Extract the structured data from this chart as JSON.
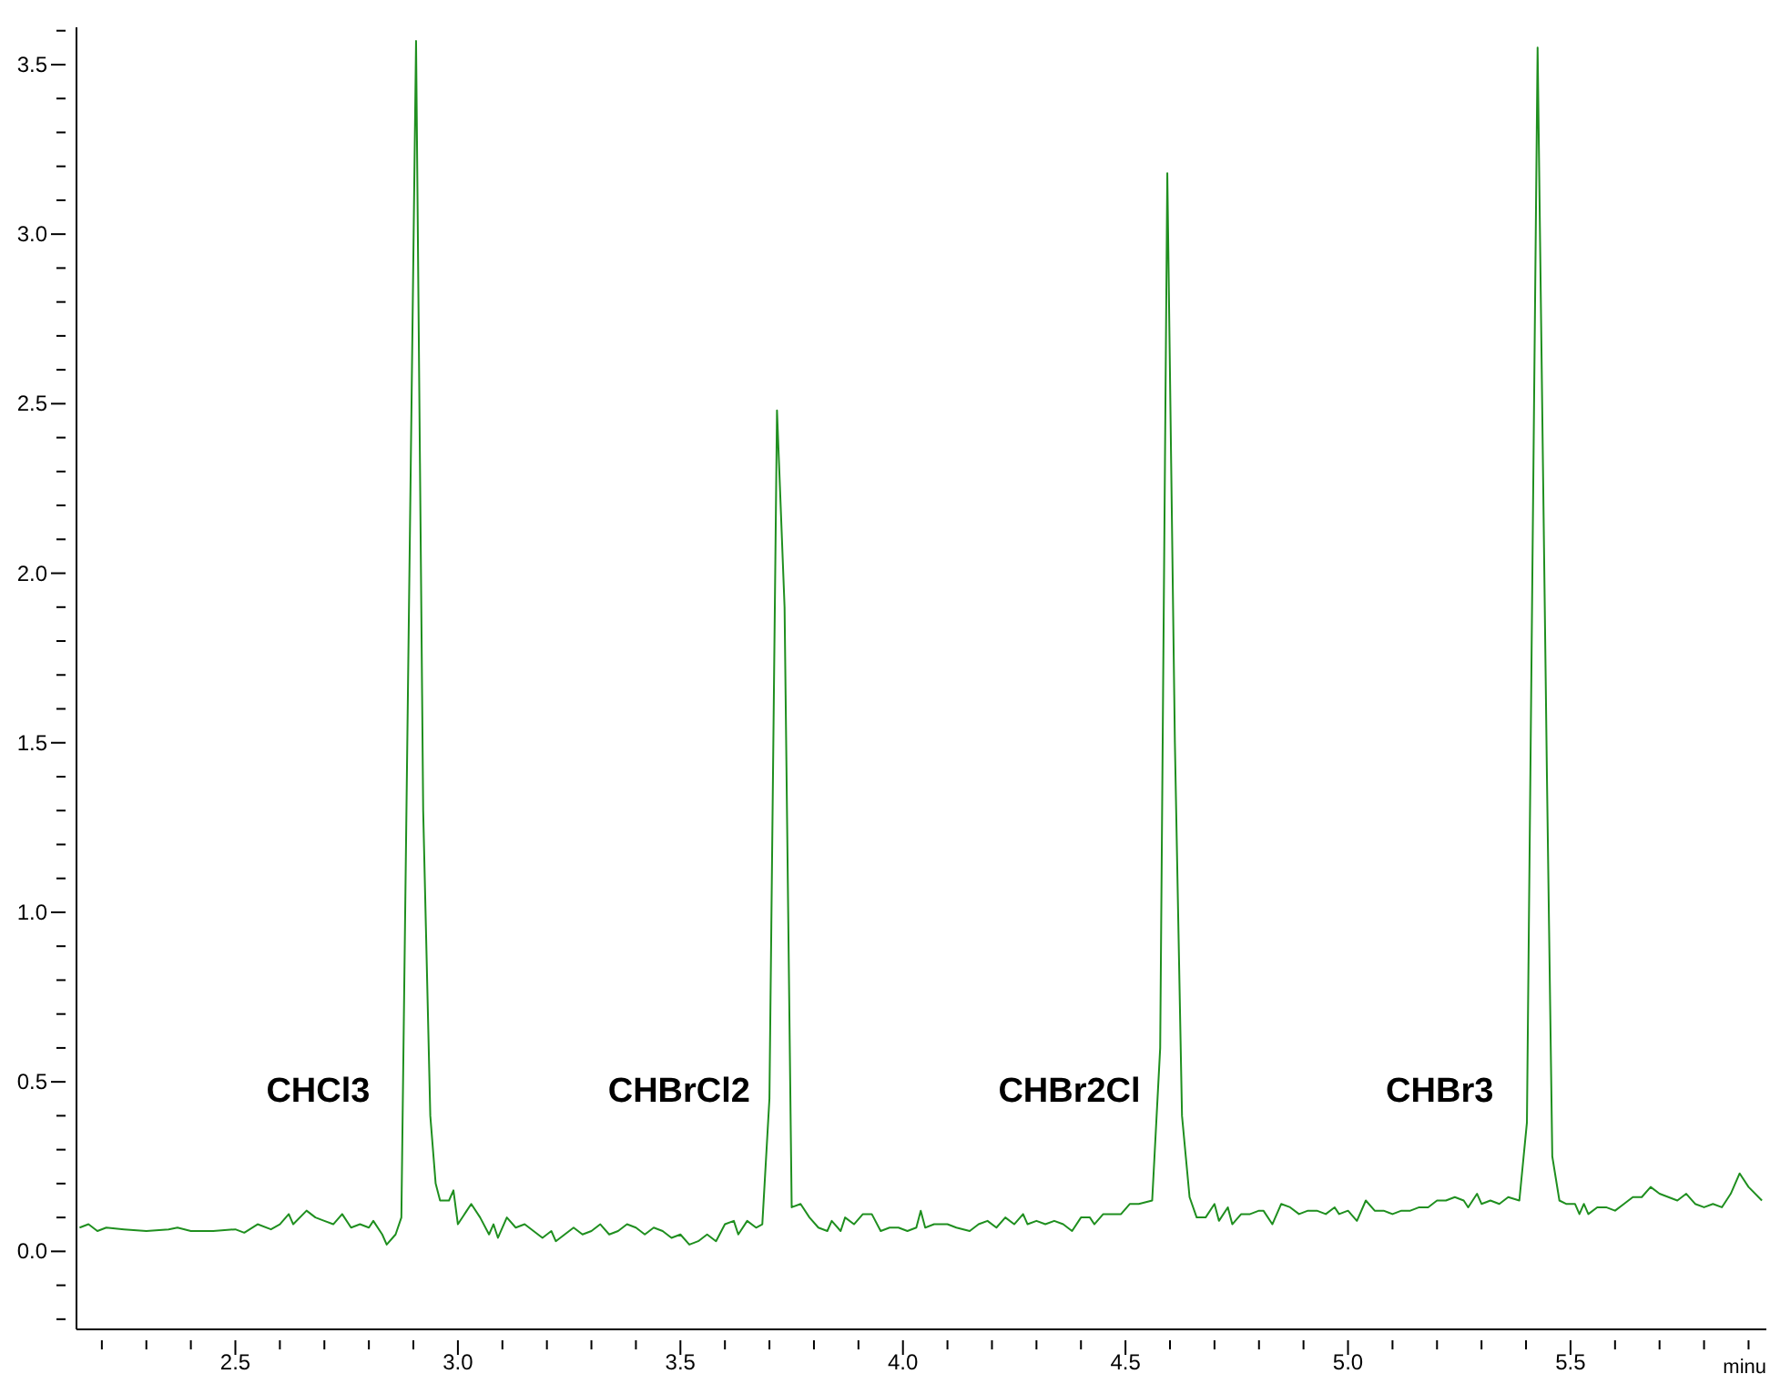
{
  "chart_data": {
    "type": "line",
    "xlabel": "minu",
    "x": [
      2.15,
      2.17,
      2.19,
      2.21,
      2.25,
      2.3,
      2.35,
      2.37,
      2.4,
      2.45,
      2.5,
      2.52,
      2.55,
      2.58,
      2.6,
      2.62,
      2.63,
      2.66,
      2.68,
      2.7,
      2.72,
      2.74,
      2.76,
      2.78,
      2.8,
      2.81,
      2.83,
      2.84,
      2.86,
      2.873,
      2.906,
      2.922,
      2.938,
      2.95,
      2.96,
      2.98,
      2.99,
      3.0,
      3.02,
      3.03,
      3.05,
      3.07,
      3.08,
      3.09,
      3.11,
      3.13,
      3.15,
      3.17,
      3.19,
      3.21,
      3.22,
      3.24,
      3.26,
      3.28,
      3.3,
      3.32,
      3.34,
      3.36,
      3.38,
      3.4,
      3.42,
      3.44,
      3.46,
      3.48,
      3.5,
      3.52,
      3.54,
      3.56,
      3.58,
      3.6,
      3.62,
      3.63,
      3.65,
      3.67,
      3.684,
      3.7,
      3.717,
      3.734,
      3.75,
      3.77,
      3.79,
      3.81,
      3.83,
      3.84,
      3.86,
      3.87,
      3.89,
      3.91,
      3.93,
      3.95,
      3.97,
      3.99,
      4.01,
      4.03,
      4.04,
      4.05,
      4.07,
      4.1,
      4.12,
      4.15,
      4.17,
      4.19,
      4.21,
      4.23,
      4.25,
      4.27,
      4.28,
      4.3,
      4.32,
      4.34,
      4.36,
      4.38,
      4.4,
      4.42,
      4.43,
      4.45,
      4.47,
      4.49,
      4.51,
      4.53,
      4.56,
      4.578,
      4.594,
      4.611,
      4.627,
      4.644,
      4.66,
      4.68,
      4.7,
      4.71,
      4.73,
      4.74,
      4.76,
      4.78,
      4.8,
      4.81,
      4.83,
      4.85,
      4.87,
      4.89,
      4.91,
      4.93,
      4.95,
      4.97,
      4.98,
      5.0,
      5.02,
      5.04,
      5.06,
      5.08,
      5.1,
      5.12,
      5.14,
      5.16,
      5.18,
      5.2,
      5.22,
      5.24,
      5.26,
      5.27,
      5.29,
      5.3,
      5.32,
      5.34,
      5.36,
      5.385,
      5.402,
      5.426,
      5.447,
      5.459,
      5.475,
      5.49,
      5.51,
      5.52,
      5.53,
      5.54,
      5.56,
      5.58,
      5.6,
      5.62,
      5.64,
      5.66,
      5.68,
      5.7,
      5.72,
      5.74,
      5.76,
      5.78,
      5.8,
      5.82,
      5.84,
      5.86,
      5.88,
      5.9,
      5.93
    ],
    "series": [
      {
        "color": "#1f8f1f",
        "values": [
          0.07,
          0.08,
          0.06,
          0.07,
          0.065,
          0.06,
          0.065,
          0.07,
          0.06,
          0.06,
          0.065,
          0.055,
          0.08,
          0.065,
          0.08,
          0.11,
          0.08,
          0.12,
          0.1,
          0.09,
          0.08,
          0.11,
          0.07,
          0.08,
          0.07,
          0.09,
          0.05,
          0.02,
          0.05,
          0.1,
          3.57,
          1.3,
          0.4,
          0.2,
          0.15,
          0.15,
          0.18,
          0.08,
          0.12,
          0.14,
          0.1,
          0.05,
          0.08,
          0.04,
          0.1,
          0.07,
          0.08,
          0.06,
          0.04,
          0.06,
          0.03,
          0.05,
          0.07,
          0.05,
          0.06,
          0.08,
          0.05,
          0.06,
          0.08,
          0.07,
          0.05,
          0.07,
          0.06,
          0.04,
          0.05,
          0.02,
          0.03,
          0.05,
          0.03,
          0.08,
          0.09,
          0.05,
          0.09,
          0.07,
          0.08,
          0.45,
          2.48,
          1.9,
          0.13,
          0.14,
          0.1,
          0.07,
          0.06,
          0.09,
          0.06,
          0.1,
          0.08,
          0.11,
          0.11,
          0.06,
          0.07,
          0.07,
          0.06,
          0.07,
          0.12,
          0.07,
          0.08,
          0.08,
          0.07,
          0.06,
          0.08,
          0.09,
          0.07,
          0.1,
          0.08,
          0.11,
          0.08,
          0.09,
          0.08,
          0.09,
          0.08,
          0.06,
          0.1,
          0.1,
          0.08,
          0.11,
          0.11,
          0.11,
          0.14,
          0.14,
          0.15,
          0.6,
          3.18,
          1.5,
          0.4,
          0.16,
          0.1,
          0.1,
          0.14,
          0.09,
          0.13,
          0.08,
          0.11,
          0.11,
          0.12,
          0.12,
          0.08,
          0.14,
          0.13,
          0.11,
          0.12,
          0.12,
          0.11,
          0.13,
          0.11,
          0.12,
          0.09,
          0.15,
          0.12,
          0.12,
          0.11,
          0.12,
          0.12,
          0.13,
          0.13,
          0.15,
          0.15,
          0.16,
          0.15,
          0.13,
          0.17,
          0.14,
          0.15,
          0.14,
          0.16,
          0.15,
          0.38,
          3.55,
          1.4,
          0.28,
          0.15,
          0.14,
          0.14,
          0.11,
          0.14,
          0.11,
          0.13,
          0.13,
          0.12,
          0.14,
          0.16,
          0.16,
          0.19,
          0.17,
          0.16,
          0.15,
          0.17,
          0.14,
          0.13,
          0.14,
          0.13,
          0.17,
          0.23,
          0.19,
          0.15
        ]
      }
    ],
    "xlim": [
      2.143,
      5.94
    ],
    "ylim": [
      -0.23,
      3.61
    ],
    "xticks": [
      {
        "value": 2.2,
        "label": null
      },
      {
        "value": 2.3,
        "label": null
      },
      {
        "value": 2.4,
        "label": null
      },
      2.5,
      {
        "value": 2.6,
        "label": null
      },
      {
        "value": 2.7,
        "label": null
      },
      {
        "value": 2.8,
        "label": null
      },
      {
        "value": 2.9,
        "label": null
      },
      {
        "value": 3,
        "label": "3.0"
      },
      {
        "value": 3.1,
        "label": null
      },
      {
        "value": 3.2,
        "label": null
      },
      {
        "value": 3.3,
        "label": null
      },
      {
        "value": 3.4,
        "label": null
      },
      3.5,
      {
        "value": 3.6,
        "label": null
      },
      {
        "value": 3.7,
        "label": null
      },
      {
        "value": 3.8,
        "label": null
      },
      {
        "value": 3.9,
        "label": null
      },
      {
        "value": 4,
        "label": "4.0"
      },
      {
        "value": 4.1,
        "label": null
      },
      {
        "value": 4.2,
        "label": null
      },
      {
        "value": 4.3,
        "label": null
      },
      {
        "value": 4.4,
        "label": null
      },
      4.5,
      {
        "value": 4.6,
        "label": null
      },
      {
        "value": 4.7,
        "label": null
      },
      {
        "value": 4.8,
        "label": null
      },
      {
        "value": 4.9,
        "label": null
      },
      {
        "value": 5,
        "label": "5.0"
      },
      {
        "value": 5.1,
        "label": null
      },
      {
        "value": 5.2,
        "label": null
      },
      {
        "value": 5.3,
        "label": null
      },
      {
        "value": 5.4,
        "label": null
      },
      5.5,
      {
        "value": 5.6,
        "label": null
      },
      {
        "value": 5.7,
        "label": null
      },
      {
        "value": 5.8,
        "label": null
      },
      {
        "value": 5.9,
        "label": null
      }
    ],
    "yticks": [
      {
        "value": -0.2,
        "label": null
      },
      {
        "value": -0.1,
        "label": null
      },
      {
        "value": 0,
        "label": "0.0"
      },
      {
        "value": 0.1,
        "label": null
      },
      {
        "value": 0.2,
        "label": null
      },
      {
        "value": 0.3,
        "label": null
      },
      {
        "value": 0.4,
        "label": null
      },
      0.5,
      {
        "value": 0.6,
        "label": null
      },
      {
        "value": 0.7,
        "label": null
      },
      {
        "value": 0.8,
        "label": null
      },
      {
        "value": 0.9,
        "label": null
      },
      {
        "value": 1,
        "label": "1.0"
      },
      {
        "value": 1.1,
        "label": null
      },
      {
        "value": 1.2,
        "label": null
      },
      {
        "value": 1.3,
        "label": null
      },
      {
        "value": 1.4,
        "label": null
      },
      1.5,
      {
        "value": 1.6,
        "label": null
      },
      {
        "value": 1.7,
        "label": null
      },
      {
        "value": 1.8,
        "label": null
      },
      {
        "value": 1.9,
        "label": null
      },
      {
        "value": 2,
        "label": "2.0"
      },
      {
        "value": 2.1,
        "label": null
      },
      {
        "value": 2.2,
        "label": null
      },
      {
        "value": 2.3,
        "label": null
      },
      {
        "value": 2.4,
        "label": null
      },
      2.5,
      {
        "value": 2.6,
        "label": null
      },
      {
        "value": 2.7,
        "label": null
      },
      {
        "value": 2.8,
        "label": null
      },
      {
        "value": 2.9,
        "label": null
      },
      {
        "value": 3,
        "label": "3.0"
      },
      {
        "value": 3.1,
        "label": null
      },
      {
        "value": 3.2,
        "label": null
      },
      {
        "value": 3.3,
        "label": null
      },
      {
        "value": 3.4,
        "label": null
      },
      3.5,
      {
        "value": 3.6,
        "label": null
      }
    ],
    "annotations": [
      "CHCl3",
      "CHBrCl2",
      "CHBr2Cl",
      "CHBr3"
    ],
    "grid": false,
    "legend": false,
    "marker": "none",
    "line_style": "solid"
  }
}
